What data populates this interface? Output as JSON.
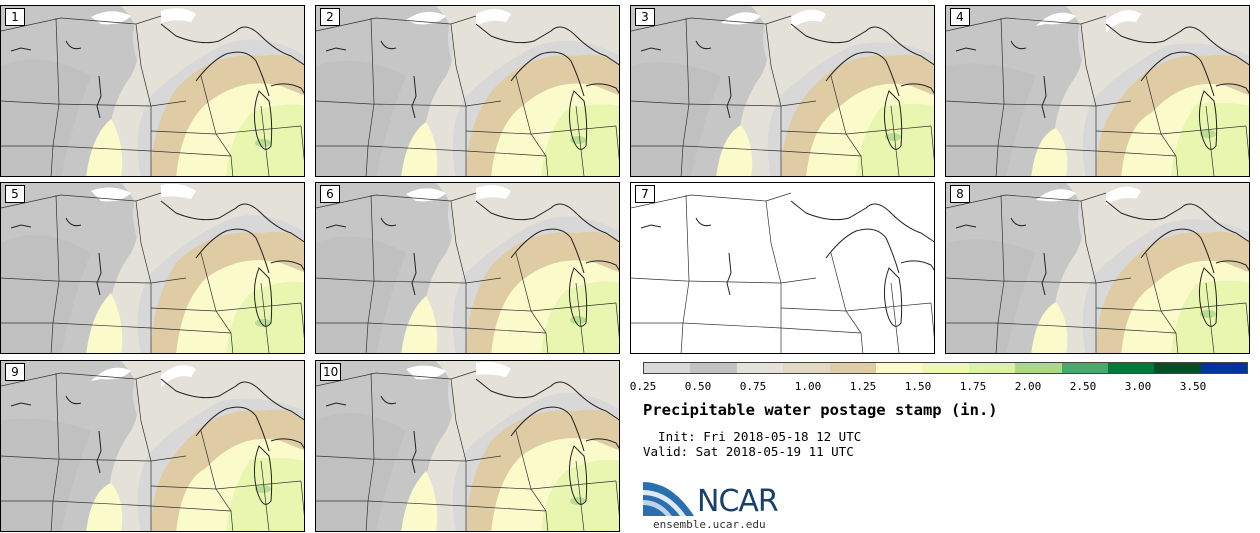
{
  "panels": [
    {
      "label": "1",
      "blank": false
    },
    {
      "label": "2",
      "blank": false
    },
    {
      "label": "3",
      "blank": false
    },
    {
      "label": "4",
      "blank": false
    },
    {
      "label": "5",
      "blank": false
    },
    {
      "label": "6",
      "blank": false
    },
    {
      "label": "7",
      "blank": true
    },
    {
      "label": "8",
      "blank": false
    },
    {
      "label": "9",
      "blank": false
    },
    {
      "label": "10",
      "blank": false
    }
  ],
  "colorbar": {
    "colors": [
      "#d9d9d9",
      "#c2c2c2",
      "#e4e2d8",
      "#e2d9c4",
      "#dfcba4",
      "#fafacb",
      "#edf7b6",
      "#dbf3a6",
      "#acd789",
      "#4aa96a",
      "#05793a",
      "#054d25",
      "#00339d"
    ],
    "tick_labels": [
      "0.25",
      "0.50",
      "0.75",
      "1.00",
      "1.25",
      "1.50",
      "1.75",
      "2.00",
      "2.50",
      "3.00",
      "3.50"
    ]
  },
  "title": "Precipitable water postage stamp (in.)",
  "init": "  Init: Fri 2018-05-18 12 UTC",
  "valid": "Valid: Sat 2018-05-19 11 UTC",
  "logo": {
    "text": "NCAR",
    "url": "ensemble.ucar.edu"
  }
}
